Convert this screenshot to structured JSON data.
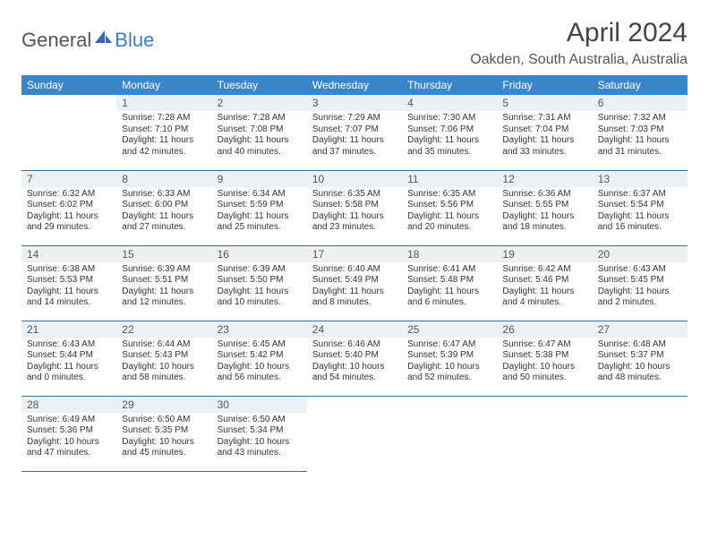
{
  "logo": {
    "general": "General",
    "blue": "Blue"
  },
  "title": "April 2024",
  "location": "Oakden, South Australia, Australia",
  "header_bg": "#3a86c8",
  "header_fg": "#ffffff",
  "daynum_bg": "#eef1f3",
  "border_color": "#3a6ea5",
  "weekdays": [
    "Sunday",
    "Monday",
    "Tuesday",
    "Wednesday",
    "Thursday",
    "Friday",
    "Saturday"
  ],
  "start_offset": 1,
  "days": [
    {
      "n": 1,
      "sunrise": "7:28 AM",
      "sunset": "7:10 PM",
      "daylight": "11 hours and 42 minutes."
    },
    {
      "n": 2,
      "sunrise": "7:28 AM",
      "sunset": "7:08 PM",
      "daylight": "11 hours and 40 minutes."
    },
    {
      "n": 3,
      "sunrise": "7:29 AM",
      "sunset": "7:07 PM",
      "daylight": "11 hours and 37 minutes."
    },
    {
      "n": 4,
      "sunrise": "7:30 AM",
      "sunset": "7:06 PM",
      "daylight": "11 hours and 35 minutes."
    },
    {
      "n": 5,
      "sunrise": "7:31 AM",
      "sunset": "7:04 PM",
      "daylight": "11 hours and 33 minutes."
    },
    {
      "n": 6,
      "sunrise": "7:32 AM",
      "sunset": "7:03 PM",
      "daylight": "11 hours and 31 minutes."
    },
    {
      "n": 7,
      "sunrise": "6:32 AM",
      "sunset": "6:02 PM",
      "daylight": "11 hours and 29 minutes."
    },
    {
      "n": 8,
      "sunrise": "6:33 AM",
      "sunset": "6:00 PM",
      "daylight": "11 hours and 27 minutes."
    },
    {
      "n": 9,
      "sunrise": "6:34 AM",
      "sunset": "5:59 PM",
      "daylight": "11 hours and 25 minutes."
    },
    {
      "n": 10,
      "sunrise": "6:35 AM",
      "sunset": "5:58 PM",
      "daylight": "11 hours and 23 minutes."
    },
    {
      "n": 11,
      "sunrise": "6:35 AM",
      "sunset": "5:56 PM",
      "daylight": "11 hours and 20 minutes."
    },
    {
      "n": 12,
      "sunrise": "6:36 AM",
      "sunset": "5:55 PM",
      "daylight": "11 hours and 18 minutes."
    },
    {
      "n": 13,
      "sunrise": "6:37 AM",
      "sunset": "5:54 PM",
      "daylight": "11 hours and 16 minutes."
    },
    {
      "n": 14,
      "sunrise": "6:38 AM",
      "sunset": "5:53 PM",
      "daylight": "11 hours and 14 minutes."
    },
    {
      "n": 15,
      "sunrise": "6:39 AM",
      "sunset": "5:51 PM",
      "daylight": "11 hours and 12 minutes."
    },
    {
      "n": 16,
      "sunrise": "6:39 AM",
      "sunset": "5:50 PM",
      "daylight": "11 hours and 10 minutes."
    },
    {
      "n": 17,
      "sunrise": "6:40 AM",
      "sunset": "5:49 PM",
      "daylight": "11 hours and 8 minutes."
    },
    {
      "n": 18,
      "sunrise": "6:41 AM",
      "sunset": "5:48 PM",
      "daylight": "11 hours and 6 minutes."
    },
    {
      "n": 19,
      "sunrise": "6:42 AM",
      "sunset": "5:46 PM",
      "daylight": "11 hours and 4 minutes."
    },
    {
      "n": 20,
      "sunrise": "6:43 AM",
      "sunset": "5:45 PM",
      "daylight": "11 hours and 2 minutes."
    },
    {
      "n": 21,
      "sunrise": "6:43 AM",
      "sunset": "5:44 PM",
      "daylight": "11 hours and 0 minutes."
    },
    {
      "n": 22,
      "sunrise": "6:44 AM",
      "sunset": "5:43 PM",
      "daylight": "10 hours and 58 minutes."
    },
    {
      "n": 23,
      "sunrise": "6:45 AM",
      "sunset": "5:42 PM",
      "daylight": "10 hours and 56 minutes."
    },
    {
      "n": 24,
      "sunrise": "6:46 AM",
      "sunset": "5:40 PM",
      "daylight": "10 hours and 54 minutes."
    },
    {
      "n": 25,
      "sunrise": "6:47 AM",
      "sunset": "5:39 PM",
      "daylight": "10 hours and 52 minutes."
    },
    {
      "n": 26,
      "sunrise": "6:47 AM",
      "sunset": "5:38 PM",
      "daylight": "10 hours and 50 minutes."
    },
    {
      "n": 27,
      "sunrise": "6:48 AM",
      "sunset": "5:37 PM",
      "daylight": "10 hours and 48 minutes."
    },
    {
      "n": 28,
      "sunrise": "6:49 AM",
      "sunset": "5:36 PM",
      "daylight": "10 hours and 47 minutes."
    },
    {
      "n": 29,
      "sunrise": "6:50 AM",
      "sunset": "5:35 PM",
      "daylight": "10 hours and 45 minutes."
    },
    {
      "n": 30,
      "sunrise": "6:50 AM",
      "sunset": "5:34 PM",
      "daylight": "10 hours and 43 minutes."
    }
  ]
}
